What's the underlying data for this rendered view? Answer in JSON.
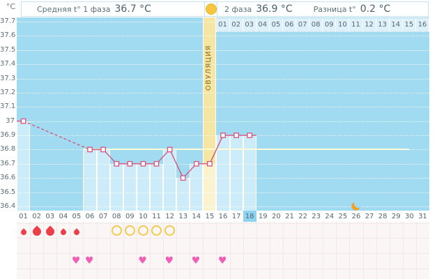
{
  "header": {
    "unit_label": "°C",
    "phase1_label": "Средняя t° 1 фаза",
    "phase1_value": "36.7 °C",
    "phase2_label": "2 фаза",
    "phase2_value": "36.9 °C",
    "diff_label": "Разница t°",
    "diff_value": "0.2 °C"
  },
  "chart_data": {
    "type": "line",
    "ylabel": "°C",
    "ylim": [
      36.4,
      37.7
    ],
    "ytick_labels": [
      "37.7",
      "37.6",
      "37.5",
      "37.4",
      "37.3",
      "37.2",
      "37.1",
      "37",
      "36.9",
      "36.8",
      "36.7",
      "36.6",
      "36.5",
      "36.4"
    ],
    "grid": true,
    "days": [
      "01",
      "02",
      "03",
      "04",
      "05",
      "06",
      "07",
      "08",
      "09",
      "10",
      "11",
      "12",
      "13",
      "14",
      "15",
      "16",
      "17",
      "18",
      "19",
      "20",
      "21",
      "22",
      "23",
      "24",
      "25",
      "26",
      "27",
      "28",
      "29",
      "30",
      "31"
    ],
    "temperatures": [
      {
        "day": 1,
        "temp": 37.0
      },
      {
        "day": 6,
        "temp": 36.8
      },
      {
        "day": 7,
        "temp": 36.8
      },
      {
        "day": 8,
        "temp": 36.7
      },
      {
        "day": 9,
        "temp": 36.7
      },
      {
        "day": 10,
        "temp": 36.7
      },
      {
        "day": 11,
        "temp": 36.7
      },
      {
        "day": 12,
        "temp": 36.8
      },
      {
        "day": 13,
        "temp": 36.6
      },
      {
        "day": 14,
        "temp": 36.7
      },
      {
        "day": 15,
        "temp": 36.7
      },
      {
        "day": 16,
        "temp": 36.9
      },
      {
        "day": 17,
        "temp": 36.9
      },
      {
        "day": 18,
        "temp": 36.9
      }
    ],
    "coverline_temp": 36.8,
    "coverline_start_day": 6,
    "coverline_end_x_days": 29.5,
    "ovulation_day": 15,
    "ovulation_label": "ОВУЛЯЦИЯ",
    "selected_day": 18,
    "phase2_start_day": 16,
    "phase2_day_labels": [
      "01",
      "02",
      "03",
      "04",
      "05",
      "06",
      "07",
      "08",
      "09",
      "10",
      "11",
      "12",
      "13",
      "14",
      "15",
      "16"
    ],
    "menstruation_days": [
      {
        "day": 1,
        "size": "small"
      },
      {
        "day": 2,
        "size": "large"
      },
      {
        "day": 3,
        "size": "large"
      },
      {
        "day": 4,
        "size": "small"
      },
      {
        "day": 5,
        "size": "small"
      }
    ],
    "fertile_circle_days": [
      8,
      9,
      10,
      11,
      12
    ],
    "intercourse_days": [
      5,
      6,
      10,
      12,
      14,
      16
    ],
    "moon_day": 26
  },
  "colors": {
    "plot_bg": "#a0dbf2",
    "bar_fill": "#cdecf9",
    "ovulation_col": "#f5e7a3",
    "ovulation_bar": "#fbf3cf",
    "temp_line": "#d4527c",
    "marker_fill": "#ffffff",
    "coverline": "#fdfbd8",
    "selected_day_bg": "#8cd4f0",
    "phase2_cell_bg": "#def1fa",
    "menstruation": "#ee3f48",
    "heart": "#f05fb5",
    "fertile_circle": "#f3c94e",
    "moon": "#f5a01e"
  }
}
